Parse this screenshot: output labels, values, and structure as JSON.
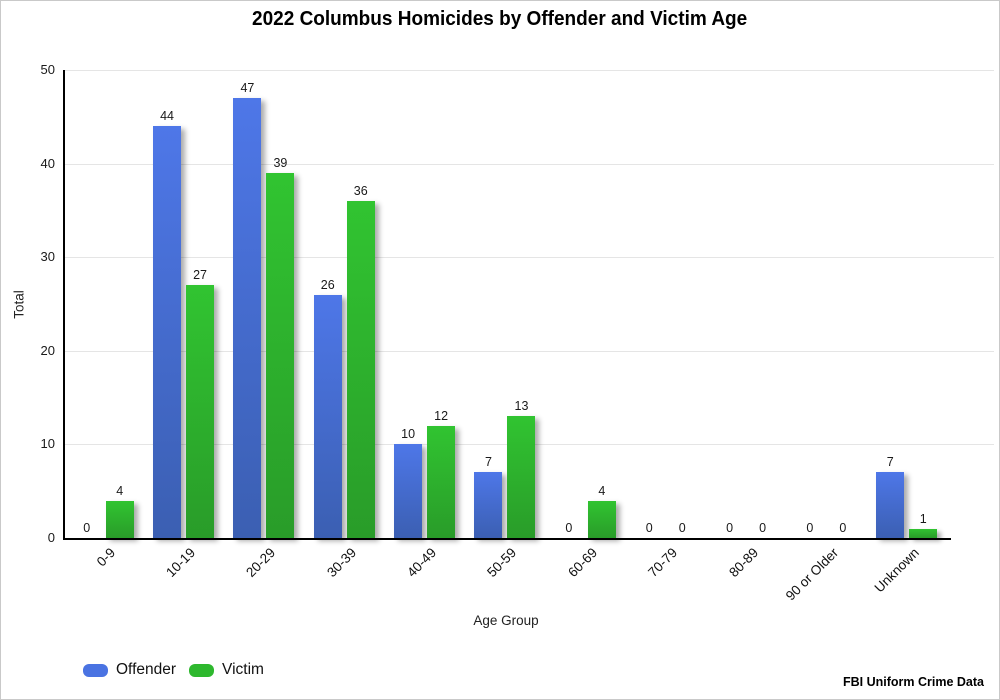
{
  "chart_data": {
    "type": "bar",
    "title": "2022 Columbus Homicides by Offender and Victim Age",
    "xlabel": "Age Group",
    "ylabel": "Total",
    "categories": [
      "0-9",
      "10-19",
      "20-29",
      "30-39",
      "40-49",
      "50-59",
      "60-69",
      "70-79",
      "80-89",
      "90 or Older",
      "Unknown"
    ],
    "series": [
      {
        "name": "Offender",
        "color": "#4a73e2",
        "gradient_top": "#4e77e8",
        "gradient_bottom": "#3b5fb2",
        "values": [
          0,
          44,
          47,
          26,
          10,
          7,
          0,
          0,
          0,
          0,
          7
        ]
      },
      {
        "name": "Victim",
        "color": "#2eb82e",
        "gradient_top": "#31c431",
        "gradient_bottom": "#299c29",
        "values": [
          4,
          27,
          39,
          36,
          12,
          13,
          4,
          0,
          0,
          0,
          1
        ]
      }
    ],
    "ylim": [
      0,
      50
    ],
    "yticks": [
      0,
      10,
      20,
      30,
      40,
      50
    ],
    "grid": true,
    "grid_color": "#e5e5e5",
    "axis_color": "#000000",
    "legend_position": "bottom-left",
    "value_labels": true
  },
  "footer": {
    "source_label": "FBI Uniform Crime Data"
  }
}
